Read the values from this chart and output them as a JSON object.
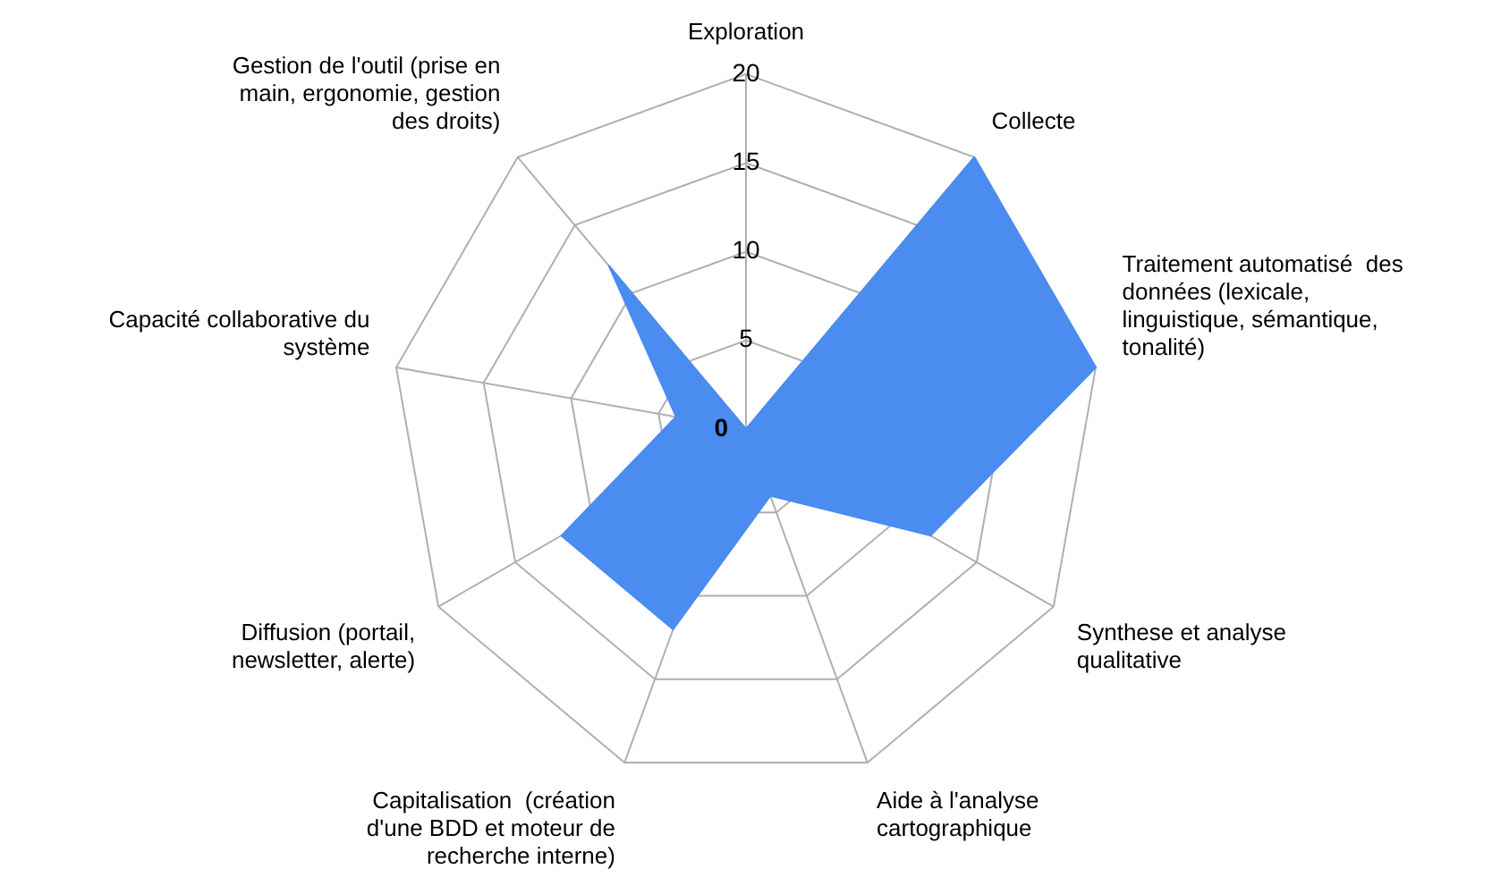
{
  "chart_data": {
    "type": "radar",
    "categories": [
      "Exploration",
      "Collecte",
      "Traitement automatisé  des\ndonnées (lexicale,\nlinguistique, sémantique,\ntonalité)",
      "Synthese et analyse\nqualitative",
      "Aide à l'analyse\ncartographique",
      "Capitalisation  (création\nd'une BDD et moteur de\nrecherche interne)",
      "Diffusion (portail,\nnewsletter, alerte)",
      "Capacité collaborative du\nsystème",
      "Gestion de l'outil (prise en\nmain, ergonomie, gestion\ndes droits)"
    ],
    "series": [
      {
        "color": "#4a8cf0",
        "values": [
          0,
          20,
          20,
          12,
          4,
          12,
          12,
          4,
          12
        ]
      }
    ],
    "ylim": [
      0,
      20
    ],
    "yticks": [
      0,
      5,
      10,
      15,
      20
    ],
    "grid": true,
    "legend": false,
    "marker": "none"
  }
}
